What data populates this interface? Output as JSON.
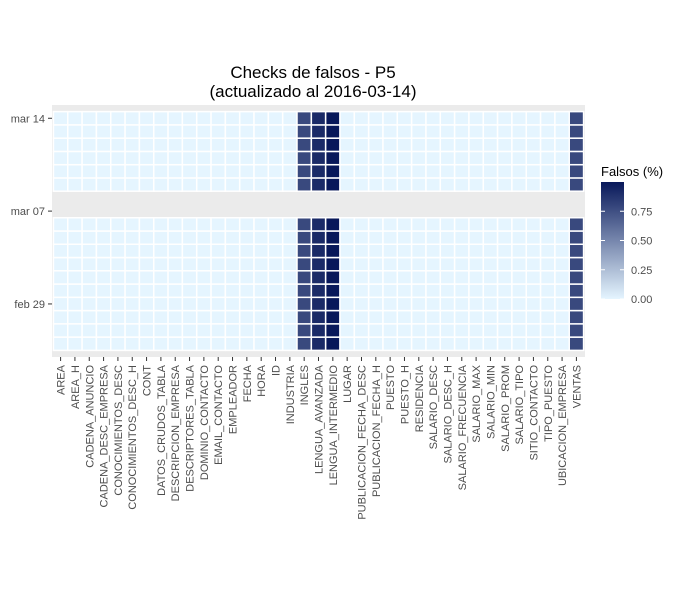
{
  "chart_data": {
    "type": "heatmap",
    "title": "Checks de falsos - P5",
    "subtitle": "(actualizado al 2016-03-14)",
    "xlabel": "",
    "ylabel": "",
    "categories": [
      "AREA",
      "AREA_H",
      "CADENA_ANUNCIO",
      "CADENA_DESC_EMPRESA",
      "CONOCIMIENTOS_DESC",
      "CONOCIMIENTOS_DESC_H",
      "CONT",
      "DATOS_CRUDOS_TABLA",
      "DESCRIPCION_EMPRESA",
      "DESCRIPTORES_TABLA",
      "DOMINIO_CONTACTO",
      "EMAIL_CONTACTO",
      "EMPLEADOR",
      "FECHA",
      "HORA",
      "ID",
      "INDUSTRIA",
      "INGLES",
      "LENGUA_AVANZADA",
      "LENGUA_INTERMEDIO",
      "LUGAR",
      "PUBLICACION_FECHA_DESC",
      "PUBLICACION_FECHA_H",
      "PUESTO",
      "PUESTO_H",
      "RESIDENCIA",
      "SALARIO_DESC",
      "SALARIO_DESC_H",
      "SALARIO_FRECUENCIA",
      "SALARIO_MAX",
      "SALARIO_MIN",
      "SALARIO_PROM",
      "SALARIO_TIPO",
      "SITIO_CONTACTO",
      "TIPO_PUESTO",
      "UBICACION_EMPRESA",
      "VENTAS"
    ],
    "y_ticks": [
      "mar 14",
      "mar 07",
      "feb 29"
    ],
    "dates": [
      "2016-02-26",
      "2016-02-27",
      "2016-02-28",
      "2016-02-29",
      "2016-03-01",
      "2016-03-02",
      "2016-03-03",
      "2016-03-04",
      "2016-03-05",
      "2016-03-06",
      "2016-03-09",
      "2016-03-10",
      "2016-03-11",
      "2016-03-12",
      "2016-03-13",
      "2016-03-14"
    ],
    "ylim": [
      "2016-02-25",
      "2016-03-15"
    ],
    "values_by_column": {
      "INGLES": 0.78,
      "LENGUA_AVANZADA": 0.92,
      "LENGUA_INTERMEDIO": 1.0,
      "VENTAS": 0.78
    },
    "default_value": 0.0,
    "legend": {
      "title": "Falsos (%)",
      "ticks": [
        "0.75",
        "0.50",
        "0.25",
        "0.00"
      ],
      "tick_values": [
        0.75,
        0.5,
        0.25,
        0.0
      ],
      "range": [
        0.0,
        1.0
      ],
      "placement": "right"
    },
    "colors": {
      "low": "#e5f5ff",
      "high": "#08185a",
      "panel_bg": "#ebebeb",
      "tile_border": "#ffffff"
    },
    "grid": true
  }
}
